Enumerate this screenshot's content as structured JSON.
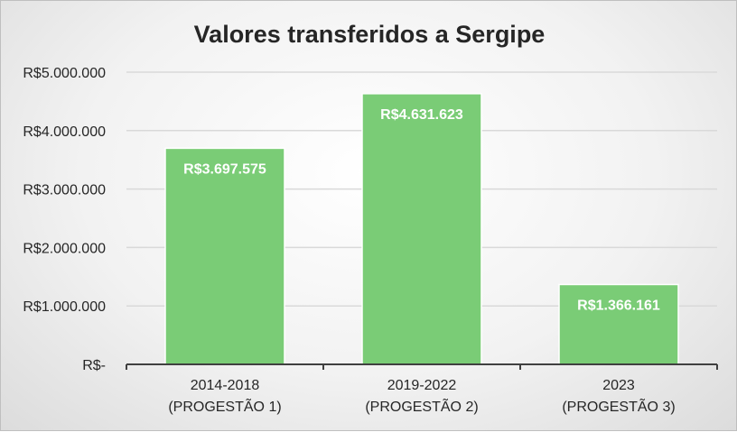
{
  "chart_data": {
    "type": "bar",
    "title": "Valores transferidos a Sergipe",
    "categories": [
      [
        "2014-2018",
        "(PROGESTÃO 1)"
      ],
      [
        "2019-2022",
        "(PROGESTÃO 2)"
      ],
      [
        "2023",
        "(PROGESTÃO 3)"
      ]
    ],
    "values": [
      3697575,
      4631623,
      1366161
    ],
    "data_labels": [
      "R$3.697.575",
      "R$4.631.623",
      "R$1.366.161"
    ],
    "ylim": [
      0,
      5000000
    ],
    "yticks": [
      0,
      1000000,
      2000000,
      3000000,
      4000000,
      5000000
    ],
    "ytick_labels": [
      "R$-",
      "R$1.000.000",
      "R$2.000.000",
      "R$3.000.000",
      "R$4.000.000",
      "R$5.000.000"
    ],
    "grid": true,
    "legend": "none",
    "colors": {
      "bar": "#7acc76",
      "bar_edge": "#ffffff",
      "grid": "#d9d9d9",
      "axis": "#404040"
    }
  }
}
